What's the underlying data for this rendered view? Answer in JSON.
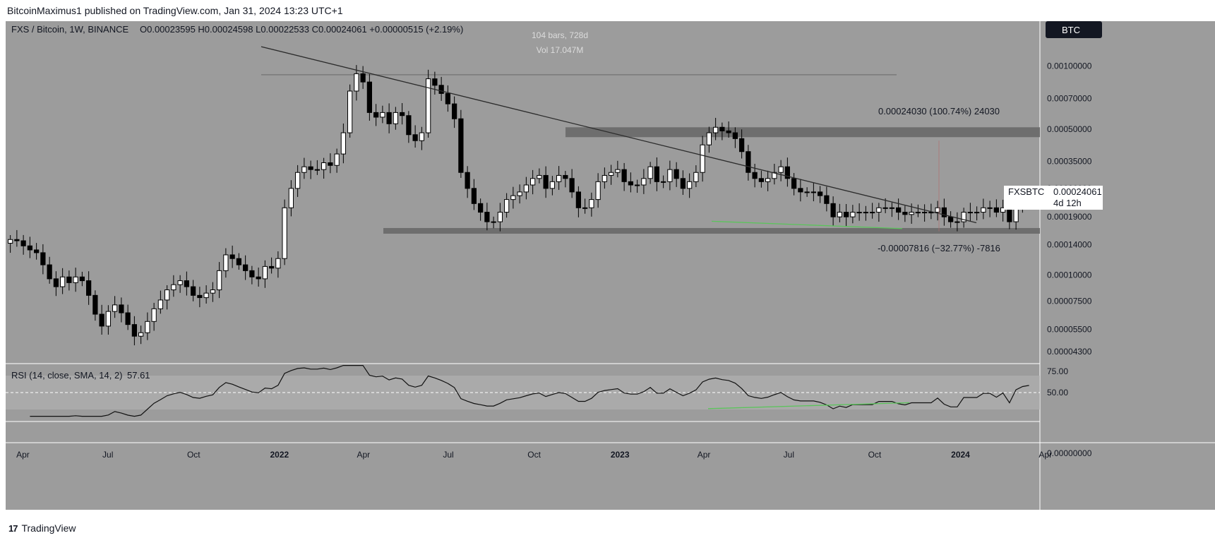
{
  "header": {
    "published": "BitcoinMaximus1 published on TradingView.com, Jan 31, 2024 13:23 UTC+1"
  },
  "legend": {
    "symbol": "FXS / Bitcoin, 1W, BINANCE",
    "ohlc": "O0.00023595 H0.00024598 L0.00022533 C0.00024061 +0.00000515 (+2.19%)"
  },
  "currency_badge": "BTC",
  "measure": {
    "bars": "104 bars, 728d",
    "vol": "Vol 17.047M",
    "up_label": "0.00024030 (100.74%) 24030",
    "down_label": "-0.00007816 (−32.77%) -7816"
  },
  "price_label": {
    "ticker": "FXSBTC",
    "value": "0.00024061",
    "countdown": "4d 12h"
  },
  "rsi": {
    "legend_name": "RSI (14, close, SMA, 14, 2)",
    "value": "57.61"
  },
  "footer": {
    "logo": "TradingView"
  },
  "colors": {
    "background": "#9c9c9c",
    "bull_candle": "#ffffff",
    "bear_candle": "#000000",
    "trendline": "#2b2b2b",
    "zone": "#6e6e6e",
    "divergence": "#5bc45b"
  },
  "chart_data": {
    "type": "candlestick",
    "interval": "1W",
    "scale": "log",
    "x_start": "2021-03-15",
    "x_step_days": 7,
    "y_ticks": [
      "0.00100000",
      "0.00070000",
      "0.00050000",
      "0.00035000",
      "0.00026000",
      "0.00019000",
      "0.00014000",
      "0.00010000",
      "0.00007500",
      "0.00005500",
      "0.00004300"
    ],
    "x_ticks": [
      {
        "label": "Apr",
        "date": "2021-04-01",
        "bold": false
      },
      {
        "label": "Jul",
        "date": "2021-07-01",
        "bold": false
      },
      {
        "label": "Oct",
        "date": "2021-10-01",
        "bold": false
      },
      {
        "label": "2022",
        "date": "2022-01-01",
        "bold": true
      },
      {
        "label": "Apr",
        "date": "2022-04-01",
        "bold": false
      },
      {
        "label": "Jul",
        "date": "2022-07-01",
        "bold": false
      },
      {
        "label": "Oct",
        "date": "2022-10-01",
        "bold": false
      },
      {
        "label": "2023",
        "date": "2023-01-01",
        "bold": true
      },
      {
        "label": "Apr",
        "date": "2023-04-01",
        "bold": false
      },
      {
        "label": "Jul",
        "date": "2023-07-01",
        "bold": false
      },
      {
        "label": "Oct",
        "date": "2023-10-01",
        "bold": false
      },
      {
        "label": "2024",
        "date": "2024-01-01",
        "bold": true
      },
      {
        "label": "Apr",
        "date": "2024-04-01",
        "bold": false
      }
    ],
    "close": [
      0.000148,
      0.000146,
      0.000138,
      0.000132,
      0.000128,
      0.000112,
      9.6e-05,
      8.8e-05,
      9.8e-05,
      9.2e-05,
      9.8e-05,
      9.4e-05,
      8e-05,
      6.5e-05,
      5.7e-05,
      6.7e-05,
      7.2e-05,
      6.6e-05,
      5.8e-05,
      5.1e-05,
      5.3e-05,
      6e-05,
      6.9e-05,
      7.6e-05,
      8.5e-05,
      9e-05,
      9.4e-05,
      8.8e-05,
      8e-05,
      7.8e-05,
      8.2e-05,
      8.5e-05,
      0.000105,
      0.000125,
      0.00012,
      0.000112,
      0.000105,
      9.8e-05,
      9.6e-05,
      0.00011,
      0.000108,
      0.00012,
      0.00021,
      0.00026,
      0.00031,
      0.00033,
      0.00032,
      0.00032,
      0.000345,
      0.000335,
      0.00038,
      0.00048,
      0.00076,
      0.00092,
      0.00084,
      0.0006,
      0.00057,
      0.0006,
      0.00053,
      0.0006,
      0.00058,
      0.00047,
      0.00044,
      0.00048,
      0.00087,
      0.00081,
      0.00074,
      0.00066,
      0.00056,
      0.00031,
      0.00026,
      0.00022,
      0.0002,
      0.00018,
      0.00018,
      0.0002,
      0.00023,
      0.00024,
      0.00025,
      0.00027,
      0.00029,
      0.0003,
      0.00026,
      0.00028,
      0.0003,
      0.00029,
      0.00025,
      0.00021,
      0.00021,
      0.00023,
      0.00028,
      0.0003,
      0.00031,
      0.00032,
      0.00028,
      0.00027,
      0.00027,
      0.00029,
      0.00033,
      0.00028,
      0.00028,
      0.00032,
      0.00029,
      0.00026,
      0.00028,
      0.00031,
      0.00042,
      0.00048,
      0.00051,
      0.00049,
      0.00048,
      0.00045,
      0.00039,
      0.00031,
      0.00029,
      0.00028,
      0.00029,
      0.00031,
      0.00033,
      0.00029,
      0.00026,
      0.00025,
      0.00025,
      0.00025,
      0.00024,
      0.00022,
      0.00019,
      0.0002,
      0.00019,
      0.0002,
      0.0002,
      0.0002,
      0.0002,
      0.00021,
      0.00021,
      0.00021,
      0.0002,
      0.000195,
      0.0002,
      0.0002,
      0.0002,
      0.0002,
      0.00021,
      0.00019,
      0.00018,
      0.00018,
      0.0002,
      0.0002,
      0.0002,
      0.00021,
      0.00021,
      0.0002,
      0.00021,
      0.00018,
      0.00022,
      0.000235,
      0.000241
    ]
  }
}
